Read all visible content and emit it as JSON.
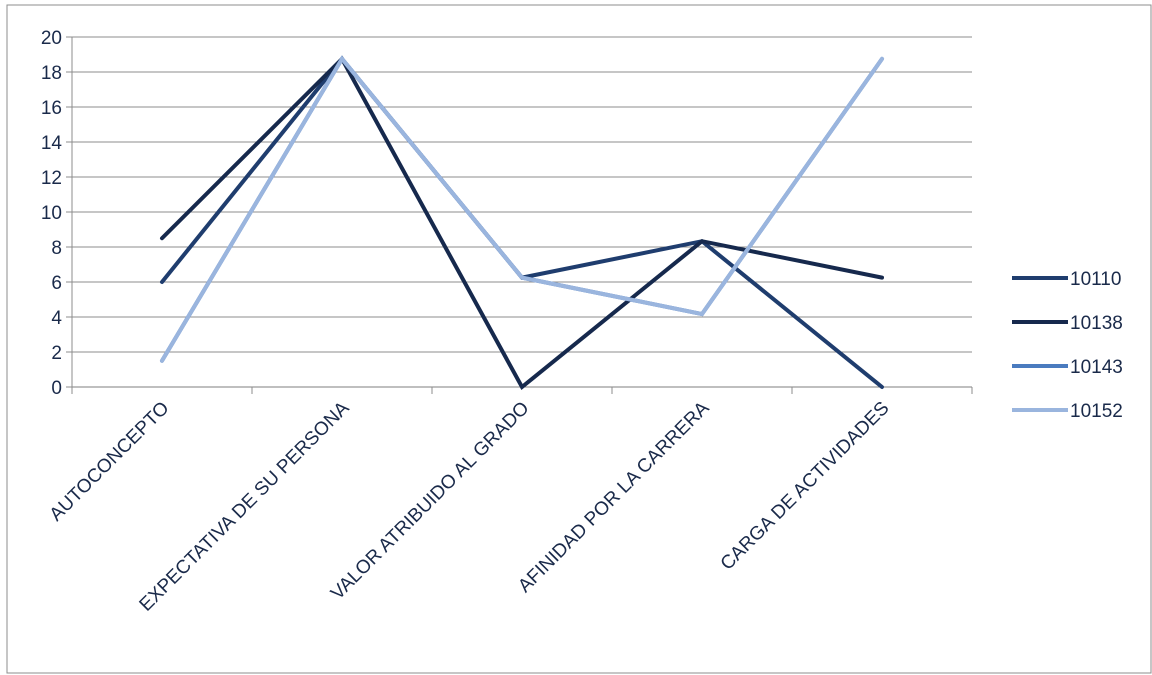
{
  "chart_data": {
    "type": "line",
    "categories": [
      "AUTOCONCEPTO",
      "EXPECTATIVA DE SU PERSONA",
      "VALOR ATRIBUIDO AL GRADO",
      "AFINIDAD POR LA CARRERA",
      "CARGA DE ACTIVIDADES"
    ],
    "series": [
      {
        "name": "10110",
        "color": "#1f3d6e",
        "values": [
          6,
          18.75,
          6.25,
          8.33,
          0
        ]
      },
      {
        "name": "10138",
        "color": "#16294d",
        "values": [
          8.5,
          18.75,
          0,
          8.33,
          6.25
        ]
      },
      {
        "name": "10143",
        "color": "#4a7bbf",
        "values": [
          1.5,
          18.75,
          6.25,
          4.17,
          18.75
        ]
      },
      {
        "name": "10152",
        "color": "#9ab5de",
        "values": [
          1.5,
          18.75,
          6.25,
          4.17,
          18.75
        ]
      }
    ],
    "yticks": [
      0,
      2,
      4,
      6,
      8,
      10,
      12,
      14,
      16,
      18,
      20
    ],
    "ylim": [
      0,
      20
    ],
    "grid": true,
    "legend": "right"
  }
}
